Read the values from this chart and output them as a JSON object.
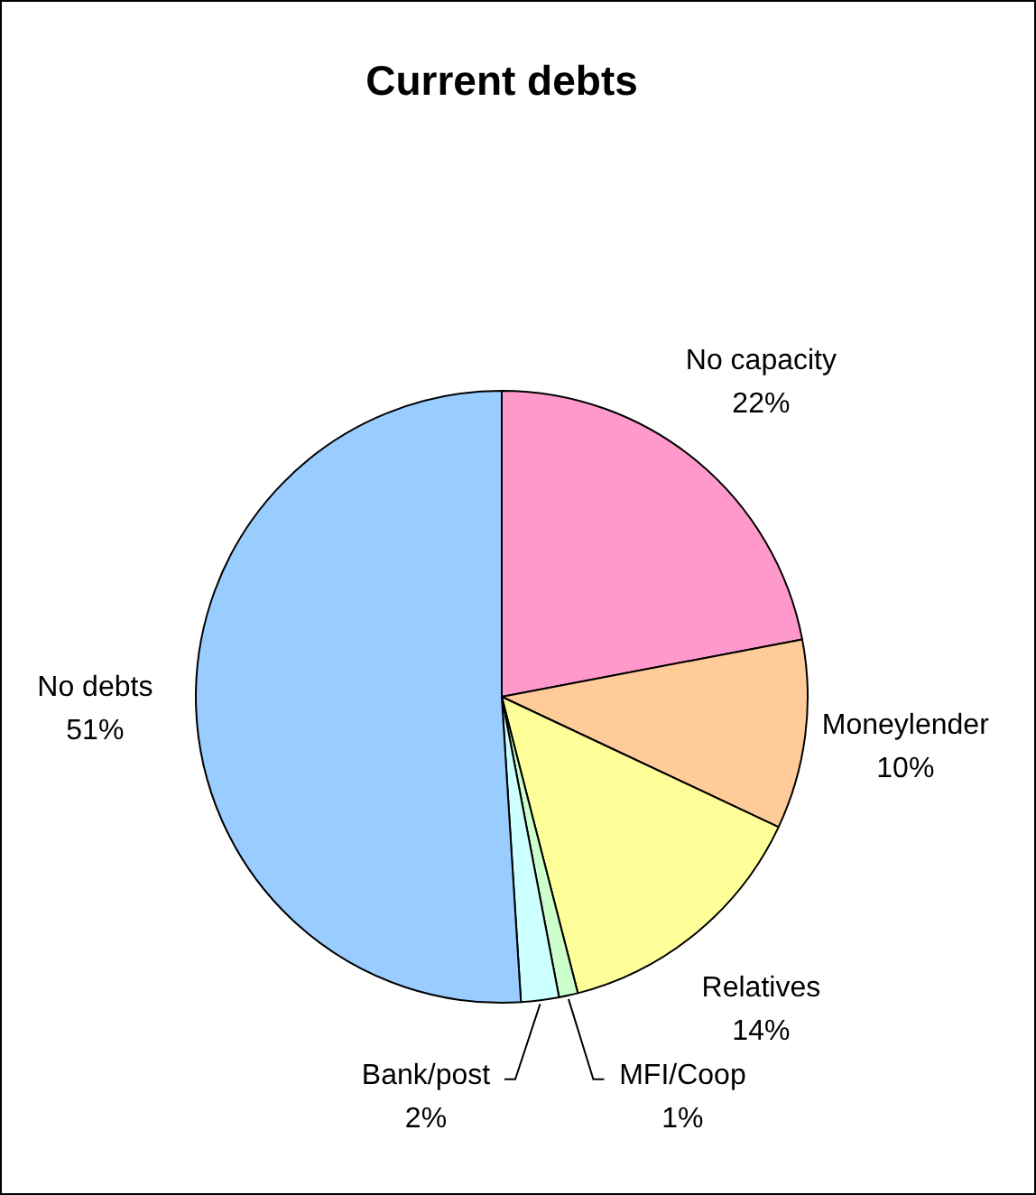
{
  "chart_data": {
    "type": "pie",
    "title": "Current debts",
    "categories": [
      "No capacity",
      "Moneylender",
      "Relatives",
      "MFI/Coop",
      "Bank/post",
      "No debts"
    ],
    "values": [
      22,
      10,
      14,
      1,
      2,
      51
    ],
    "colors": [
      "#ff99cc",
      "#ffcc99",
      "#ffff99",
      "#ccffcc",
      "#ccffff",
      "#99ccff"
    ],
    "value_labels": [
      "22%",
      "10%",
      "14%",
      "1%",
      "2%",
      "51%"
    ],
    "legend": false
  }
}
